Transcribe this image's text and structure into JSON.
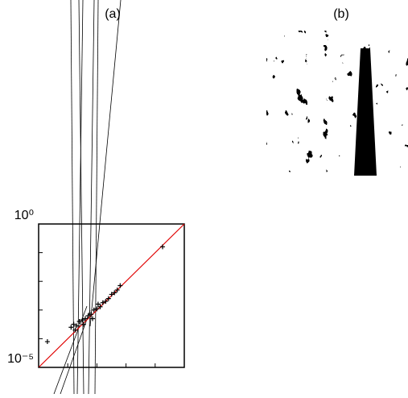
{
  "chart_data": {
    "type": "scatter",
    "title": "(a)",
    "log_x": true,
    "log_y": true,
    "xlim": [
      1e-05,
      1
    ],
    "ylim": [
      1e-05,
      1
    ],
    "yticks": [
      {
        "value": 1e-05,
        "label": "10⁻⁵"
      },
      {
        "value": 1,
        "label": "10⁰"
      }
    ],
    "yminorticks": [
      0.0001,
      0.001,
      0.01,
      0.1
    ],
    "xminorticks": [
      0.0001,
      0.001,
      0.01,
      0.1
    ],
    "reference_line_color": "#e00000",
    "series": [
      {
        "color": "#000000",
        "x": [
          2e-05,
          0.18,
          0.00013,
          0.00016,
          0.0002,
          0.00025,
          0.00032,
          0.0004,
          0.0005,
          0.00063,
          0.00079,
          0.001,
          0.0013,
          0.0016,
          0.002,
          0.0025,
          0.0032,
          0.004,
          0.005,
          0.0063,
          0.00018,
          0.00035,
          0.00071,
          0.0011
        ],
        "values": [
          7.9e-05,
          0.16,
          0.00025,
          0.00032,
          0.00028,
          0.0004,
          0.00045,
          0.0005,
          0.00063,
          0.00071,
          0.001,
          0.0011,
          0.0013,
          0.0018,
          0.002,
          0.0025,
          0.0035,
          0.004,
          0.005,
          0.0071,
          0.0002,
          0.00032,
          0.0005,
          0.0016
        ]
      }
    ]
  },
  "image_panel": {
    "label": "(b)"
  }
}
